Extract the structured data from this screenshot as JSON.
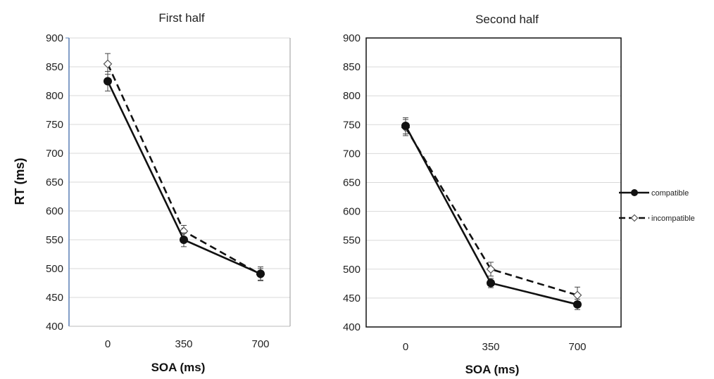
{
  "chart_data": [
    {
      "type": "line",
      "title": "First half",
      "xlabel": "SOA (ms)",
      "ylabel": "RT (ms)",
      "categories": [
        "0",
        "350",
        "700"
      ],
      "ylim": [
        400,
        900
      ],
      "yticks": [
        "400",
        "450",
        "500",
        "550",
        "600",
        "650",
        "700",
        "750",
        "800",
        "850",
        "900"
      ],
      "grid": true,
      "series": [
        {
          "name": "compatible",
          "values": [
            825,
            550,
            491
          ],
          "errors": [
            17,
            12,
            12
          ],
          "style": "solid",
          "marker": "filled-circle",
          "color": "#111111"
        },
        {
          "name": "incompatible",
          "values": [
            855,
            565,
            490
          ],
          "errors": [
            18,
            10,
            10
          ],
          "style": "dashed",
          "marker": "open-diamond",
          "color": "#111111"
        }
      ]
    },
    {
      "type": "line",
      "title": "Second half",
      "xlabel": "SOA (ms)",
      "ylabel": "",
      "categories": [
        "0",
        "350",
        "700"
      ],
      "ylim": [
        400,
        900
      ],
      "yticks": [
        "400",
        "450",
        "500",
        "550",
        "600",
        "650",
        "700",
        "750",
        "800",
        "850",
        "900"
      ],
      "grid": true,
      "series": [
        {
          "name": "compatible",
          "values": [
            748,
            476,
            439
          ],
          "errors": [
            14,
            8,
            9
          ],
          "style": "solid",
          "marker": "filled-circle",
          "color": "#111111"
        },
        {
          "name": "incompatible",
          "values": [
            745,
            500,
            455
          ],
          "errors": [
            14,
            12,
            14
          ],
          "style": "dashed",
          "marker": "open-diamond",
          "color": "#111111"
        }
      ]
    }
  ],
  "legend": {
    "placement": "right",
    "items": [
      {
        "label": "compatible",
        "style": "solid",
        "marker": "filled-circle"
      },
      {
        "label": "incompatible",
        "style": "dashed",
        "marker": "open-diamond"
      }
    ]
  },
  "colors": {
    "line": "#111111",
    "grid": "#d9d9d9",
    "left_axis": "#5a7fb5",
    "frame": "#111111"
  }
}
